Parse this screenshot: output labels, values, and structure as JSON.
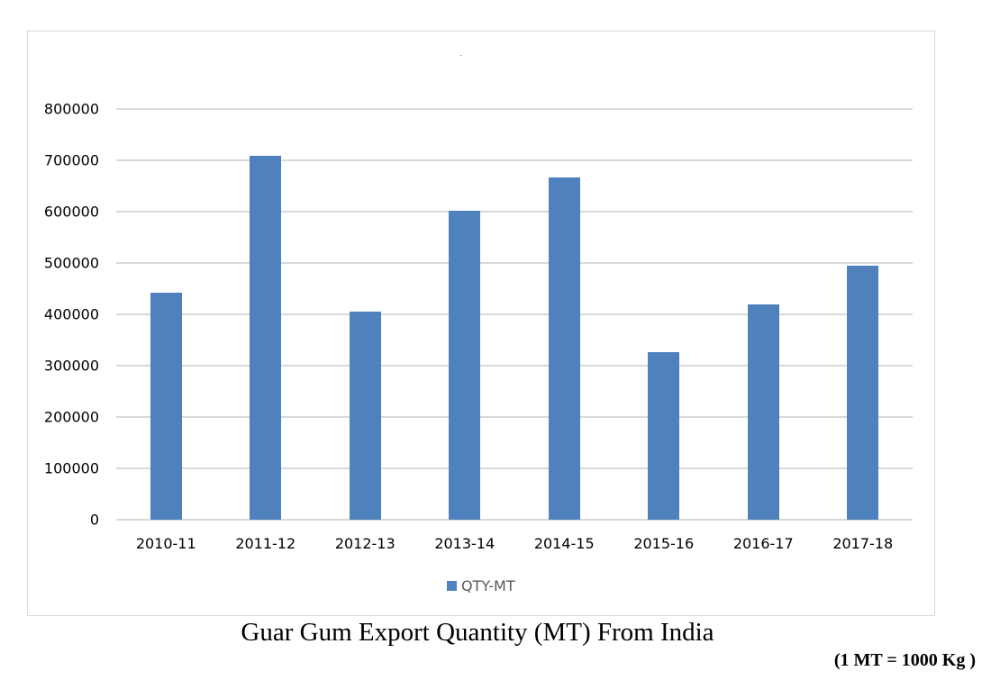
{
  "chart_data": {
    "type": "bar",
    "title": "",
    "caption": "Guar Gum Export Quantity (MT) From India",
    "note": "(1 MT = 1000 Kg )",
    "xlabel": "",
    "ylabel": "",
    "categories": [
      "2010-11",
      "2011-12",
      "2012-13",
      "2013-14",
      "2014-15",
      "2015-16",
      "2016-17",
      "2017-18"
    ],
    "series": [
      {
        "name": "QTY-MT",
        "color": "#4f81bd",
        "values": [
          442000,
          709000,
          406000,
          601000,
          666000,
          326000,
          420000,
          494000
        ]
      }
    ],
    "ylim": [
      0,
      800000
    ],
    "yticks": [
      0,
      100000,
      200000,
      300000,
      400000,
      500000,
      600000,
      700000,
      800000
    ],
    "ytick_labels": [
      "0",
      "100000",
      "200000",
      "300000",
      "400000",
      "500000",
      "600000",
      "700000",
      "800000"
    ],
    "grid": true,
    "legend_position": "bottom"
  },
  "legend": {
    "label": "QTY-MT"
  },
  "caption": "Guar Gum Export Quantity (MT) From India",
  "note": "(1 MT = 1000 Kg )"
}
